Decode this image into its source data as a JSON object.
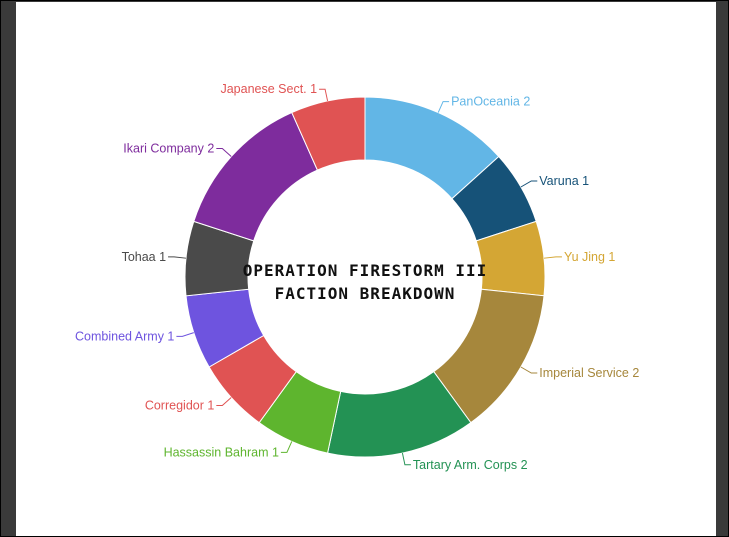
{
  "chart_data": {
    "type": "pie",
    "title_lines": [
      "OPERATION FIRESTORM III",
      "FACTION BREAKDOWN"
    ],
    "slices": [
      {
        "label": "PanOceania 2",
        "value": 2,
        "color": "#62b6e6"
      },
      {
        "label": "Varuna 1",
        "value": 1,
        "color": "#165278"
      },
      {
        "label": "Yu Jing 1",
        "value": 1,
        "color": "#d4a634"
      },
      {
        "label": "Imperial Service 2",
        "value": 2,
        "color": "#a6873c"
      },
      {
        "label": "Tartary Arm. Corps 2",
        "value": 2,
        "color": "#239254"
      },
      {
        "label": "Hassassin Bahram 1",
        "value": 1,
        "color": "#5eb52e"
      },
      {
        "label": "Corregidor 1",
        "value": 1,
        "color": "#e05353"
      },
      {
        "label": "Combined Army 1",
        "value": 1,
        "color": "#6e54df"
      },
      {
        "label": "Tohaa 1",
        "value": 1,
        "color": "#4a4a4a"
      },
      {
        "label": "Ikari Company 2",
        "value": 2,
        "color": "#7e2c9d"
      },
      {
        "label": "Japanese Sect. 1",
        "value": 1,
        "color": "#e05353"
      }
    ]
  }
}
